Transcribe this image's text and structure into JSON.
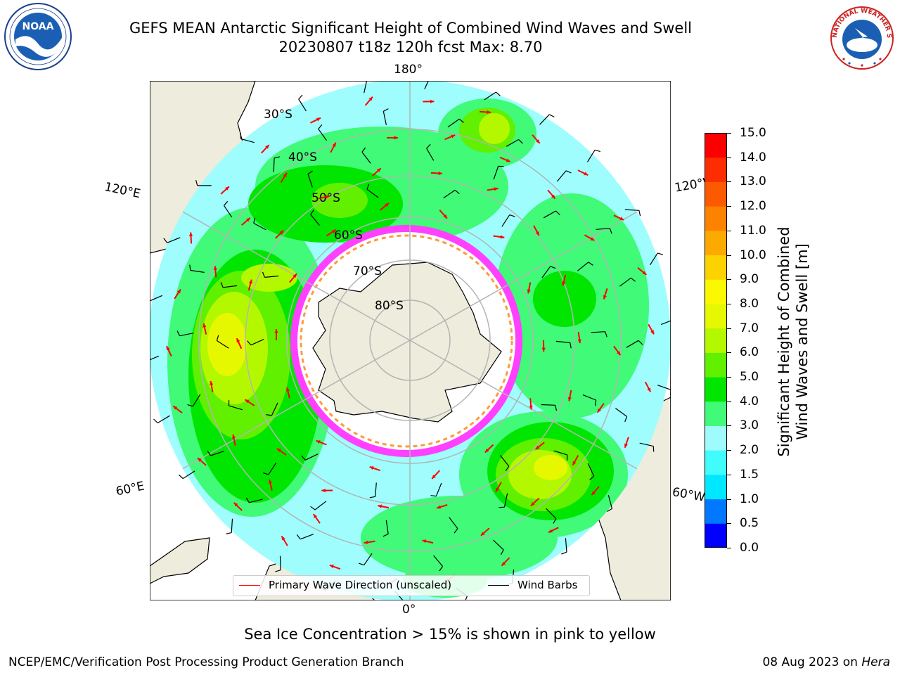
{
  "title": {
    "line1": "GEFS MEAN Antarctic Significant Height of Combined Wind Waves and Swell",
    "line2": "20230807 t18z 120h fcst   Max: 8.70"
  },
  "logos": {
    "left": {
      "icon": "noaa-logo",
      "text": "NOAA"
    },
    "right": {
      "icon": "nws-logo",
      "text": "NATIONAL WEATHER SERVICE"
    }
  },
  "map": {
    "projection": "south-polar-stereographic",
    "longitude_labels": {
      "top": "180°",
      "bottom": "0°",
      "upper_left": "120°E",
      "lower_left": "60°E",
      "upper_right": "120°W",
      "lower_right": "60°W"
    },
    "latitude_labels": [
      "30°S",
      "40°S",
      "50°S",
      "60°S",
      "70°S",
      "80°S"
    ],
    "colors": {
      "land": "#eeecdc",
      "ocean_base": "#9ffdfd",
      "gridline": "#b4b4b4",
      "ice_edge": [
        "#ff40ff",
        "#ff9a3c",
        "#f2f20a"
      ]
    }
  },
  "colorbar": {
    "label_line1": "Significant Height of Combined",
    "label_line2": "Wind Waves and Swell [m]",
    "ticks": [
      "0.0",
      "0.5",
      "1.0",
      "1.5",
      "2.0",
      "3.0",
      "4.0",
      "5.0",
      "6.0",
      "7.0",
      "8.0",
      "9.0",
      "10.0",
      "11.0",
      "12.0",
      "13.0",
      "14.0",
      "15.0"
    ],
    "colors": [
      "#0000ff",
      "#0078ff",
      "#00e8ff",
      "#40fcfc",
      "#a0fcfc",
      "#40fa78",
      "#00e600",
      "#60f000",
      "#b4f800",
      "#e6f800",
      "#fcf800",
      "#fcd200",
      "#fcaa00",
      "#fc8200",
      "#fc5a00",
      "#fc2d00",
      "#fc0000"
    ]
  },
  "legend": {
    "wave_direction": "Primary Wave Direction (unscaled)",
    "wind_barbs": "Wind Barbs",
    "wave_color": "#ff0000",
    "barb_color": "#000000"
  },
  "note": "Sea Ice Concentration > 15% is shown in pink to yellow",
  "footer": {
    "left": "NCEP/EMC/Verification Post Processing Product Generation Branch",
    "right_date": "08 Aug 2023 on ",
    "right_system": "Hera"
  }
}
